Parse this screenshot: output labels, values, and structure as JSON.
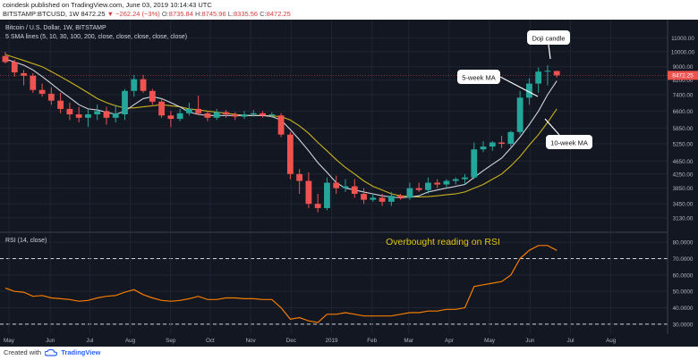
{
  "header": {
    "author": "coindesk",
    "published": "published on TradingView.com, June 03, 2019 10:14:43 UTC",
    "symbol": "BITSTAMP:BTCUSD, 1W",
    "last": "8472.25",
    "change": "−262.24 (−3%)",
    "o_label": "O:",
    "o": "8735.84",
    "h_label": "H:",
    "h": "8745.96",
    "l_label": "L:",
    "l": "8335.56",
    "c_label": "C:",
    "c": "8472.25"
  },
  "footer": {
    "created_with": "Created with",
    "brand": "TradingView"
  },
  "colors": {
    "background": "#131722",
    "up": "#26a69a",
    "down": "#ef5350",
    "sma5": "#d1d4dc",
    "sma10": "#c9b21f",
    "rsi": "#f57c00",
    "annotation": "#e0c612"
  },
  "chart_data": [
    {
      "type": "candlestick",
      "title": "Bitcoin / U.S. Dollar, 1W, BITSTAMP",
      "subtitle": "5 SMA lines (5, 10, 30, 100, 200, close, close, close, close, close)",
      "scale": "log",
      "ylim": [
        2900,
        12200
      ],
      "y_ticks": [
        "11000.00",
        "10000.00",
        "9000.00",
        "8200.00",
        "7400.00",
        "6600.00",
        "5850.00",
        "5250.00",
        "4650.00",
        "4250.00",
        "3850.00",
        "3450.00",
        "3130.00"
      ],
      "x_ticks": [
        "May",
        "Jun",
        "Jul",
        "Aug",
        "Sep",
        "Oct",
        "Nov",
        "Dec",
        "2019",
        "Feb",
        "Mar",
        "Apr",
        "May",
        "Jun",
        "Jul",
        "Aug"
      ],
      "last_price_label": "8472.25",
      "candles": [
        {
          "o": 9700,
          "h": 9990,
          "l": 9200,
          "c": 9300
        },
        {
          "o": 9300,
          "h": 9450,
          "l": 8400,
          "c": 8650
        },
        {
          "o": 8600,
          "h": 8800,
          "l": 7900,
          "c": 8450
        },
        {
          "o": 8450,
          "h": 8600,
          "l": 7500,
          "c": 7650
        },
        {
          "o": 7650,
          "h": 8000,
          "l": 7300,
          "c": 7450
        },
        {
          "o": 7450,
          "h": 7800,
          "l": 6900,
          "c": 7100
        },
        {
          "o": 7100,
          "h": 7500,
          "l": 6500,
          "c": 6700
        },
        {
          "o": 6700,
          "h": 7000,
          "l": 6200,
          "c": 6450
        },
        {
          "o": 6450,
          "h": 6800,
          "l": 6100,
          "c": 6300
        },
        {
          "o": 6300,
          "h": 6700,
          "l": 5900,
          "c": 6450
        },
        {
          "o": 6450,
          "h": 6900,
          "l": 6200,
          "c": 6600
        },
        {
          "o": 6600,
          "h": 6800,
          "l": 6000,
          "c": 6300
        },
        {
          "o": 6300,
          "h": 6900,
          "l": 6100,
          "c": 6500
        },
        {
          "o": 6450,
          "h": 7700,
          "l": 6200,
          "c": 7600
        },
        {
          "o": 7600,
          "h": 8500,
          "l": 7300,
          "c": 8250
        },
        {
          "o": 8250,
          "h": 8500,
          "l": 7500,
          "c": 7600
        },
        {
          "o": 7600,
          "h": 7700,
          "l": 6900,
          "c": 7050
        },
        {
          "o": 7050,
          "h": 7200,
          "l": 6300,
          "c": 6400
        },
        {
          "o": 6400,
          "h": 6600,
          "l": 5900,
          "c": 6250
        },
        {
          "o": 6250,
          "h": 6700,
          "l": 6150,
          "c": 6500
        },
        {
          "o": 6500,
          "h": 7000,
          "l": 6400,
          "c": 6700
        },
        {
          "o": 6700,
          "h": 7350,
          "l": 6400,
          "c": 6500
        },
        {
          "o": 6500,
          "h": 6600,
          "l": 6150,
          "c": 6300
        },
        {
          "o": 6300,
          "h": 6700,
          "l": 6200,
          "c": 6550
        },
        {
          "o": 6550,
          "h": 6650,
          "l": 6300,
          "c": 6450
        },
        {
          "o": 6450,
          "h": 6550,
          "l": 6200,
          "c": 6350
        },
        {
          "o": 6350,
          "h": 6600,
          "l": 6250,
          "c": 6450
        },
        {
          "o": 6450,
          "h": 6650,
          "l": 6350,
          "c": 6500
        },
        {
          "o": 6500,
          "h": 6600,
          "l": 6300,
          "c": 6400
        },
        {
          "o": 6400,
          "h": 6550,
          "l": 6300,
          "c": 6450
        },
        {
          "o": 6400,
          "h": 6500,
          "l": 5500,
          "c": 5600
        },
        {
          "o": 5600,
          "h": 5700,
          "l": 4100,
          "c": 4250
        },
        {
          "o": 4250,
          "h": 4400,
          "l": 3700,
          "c": 4050
        },
        {
          "o": 4050,
          "h": 4300,
          "l": 3350,
          "c": 3450
        },
        {
          "o": 3450,
          "h": 3700,
          "l": 3250,
          "c": 3350
        },
        {
          "o": 3350,
          "h": 4150,
          "l": 3300,
          "c": 4000
        },
        {
          "o": 4000,
          "h": 4200,
          "l": 3700,
          "c": 3850
        },
        {
          "o": 3850,
          "h": 4100,
          "l": 3750,
          "c": 3900
        },
        {
          "o": 3900,
          "h": 4100,
          "l": 3600,
          "c": 3700
        },
        {
          "o": 3700,
          "h": 3850,
          "l": 3450,
          "c": 3550
        },
        {
          "o": 3550,
          "h": 3700,
          "l": 3500,
          "c": 3600
        },
        {
          "o": 3600,
          "h": 3700,
          "l": 3400,
          "c": 3500
        },
        {
          "o": 3500,
          "h": 3750,
          "l": 3400,
          "c": 3650
        },
        {
          "o": 3650,
          "h": 3700,
          "l": 3550,
          "c": 3600
        },
        {
          "o": 3600,
          "h": 4000,
          "l": 3550,
          "c": 3850
        },
        {
          "o": 3850,
          "h": 4000,
          "l": 3750,
          "c": 3800
        },
        {
          "o": 3800,
          "h": 4150,
          "l": 3700,
          "c": 4000
        },
        {
          "o": 4000,
          "h": 4100,
          "l": 3850,
          "c": 3950
        },
        {
          "o": 3950,
          "h": 4100,
          "l": 3850,
          "c": 4050
        },
        {
          "o": 4050,
          "h": 4150,
          "l": 3950,
          "c": 4100
        },
        {
          "o": 4100,
          "h": 4250,
          "l": 3950,
          "c": 4150
        },
        {
          "o": 4150,
          "h": 5300,
          "l": 4100,
          "c": 5050
        },
        {
          "o": 5050,
          "h": 5350,
          "l": 4950,
          "c": 5150
        },
        {
          "o": 5150,
          "h": 5350,
          "l": 5000,
          "c": 5300
        },
        {
          "o": 5300,
          "h": 5550,
          "l": 5100,
          "c": 5250
        },
        {
          "o": 5250,
          "h": 5750,
          "l": 5150,
          "c": 5700
        },
        {
          "o": 5700,
          "h": 7600,
          "l": 5600,
          "c": 7250
        },
        {
          "o": 7250,
          "h": 8300,
          "l": 6900,
          "c": 8000
        },
        {
          "o": 8000,
          "h": 8950,
          "l": 7500,
          "c": 8700
        },
        {
          "o": 8750,
          "h": 9100,
          "l": 7900,
          "c": 8750
        },
        {
          "o": 8735.84,
          "h": 8745.96,
          "l": 8335.56,
          "c": 8472.25
        }
      ],
      "sma5": [
        9500,
        9300,
        9100,
        8800,
        8400,
        8000,
        7600,
        7250,
        6900,
        6700,
        6650,
        6550,
        6450,
        6600,
        6900,
        7200,
        7300,
        7200,
        7000,
        6800,
        6550,
        6450,
        6400,
        6400,
        6400,
        6400,
        6400,
        6400,
        6400,
        6350,
        6200,
        5800,
        5400,
        5000,
        4600,
        4300,
        4000,
        3850,
        3800,
        3750,
        3700,
        3650,
        3620,
        3600,
        3620,
        3650,
        3750,
        3800,
        3850,
        3900,
        3950,
        4150,
        4350,
        4550,
        4750,
        5100,
        5500,
        6000,
        6600,
        7400,
        8150
      ],
      "sma10": [
        9800,
        9600,
        9400,
        9200,
        9000,
        8700,
        8400,
        8100,
        7800,
        7500,
        7200,
        7000,
        6850,
        6750,
        6750,
        6800,
        6850,
        6900,
        6850,
        6800,
        6700,
        6650,
        6600,
        6550,
        6500,
        6450,
        6400,
        6400,
        6400,
        6380,
        6350,
        6200,
        5950,
        5650,
        5300,
        5000,
        4700,
        4450,
        4250,
        4050,
        3900,
        3800,
        3700,
        3650,
        3630,
        3620,
        3630,
        3650,
        3680,
        3700,
        3750,
        3850,
        3950,
        4100,
        4250,
        4500,
        4800,
        5200,
        5600,
        6100,
        6700
      ],
      "annotations": [
        "Doji candle",
        "5-week MA",
        "10-week MA"
      ]
    },
    {
      "type": "line",
      "title": "RSI (14, close)",
      "ylim": [
        25,
        85
      ],
      "y_ticks": [
        "80.0000",
        "70.0000",
        "60.0000",
        "50.0000",
        "40.0000",
        "30.0000"
      ],
      "levels": [
        70,
        30
      ],
      "annotation": "Overbought reading on RSI",
      "values": [
        52,
        50,
        49.5,
        47,
        47.5,
        46,
        45.5,
        45,
        44,
        44.5,
        46,
        47,
        47.5,
        49.5,
        51,
        48,
        46,
        44.5,
        44,
        44.5,
        45.5,
        47,
        45,
        45,
        46,
        46,
        45.5,
        45.5,
        45,
        45,
        40,
        33,
        34,
        32,
        31,
        36,
        36,
        37,
        36,
        35,
        35,
        35,
        35,
        36,
        37,
        37,
        38,
        38,
        39,
        39,
        40,
        53,
        54,
        55,
        56,
        60,
        70,
        75,
        78,
        78,
        75
      ]
    }
  ]
}
